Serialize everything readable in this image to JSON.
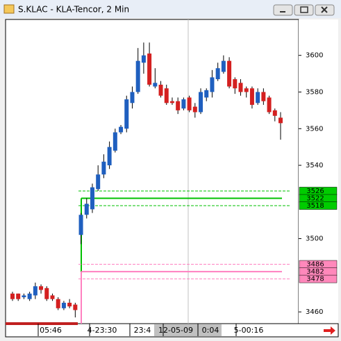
{
  "chart_data": {
    "type": "candlestick",
    "title": "S.KLAC - KLA-Tencor, 2 Min",
    "up_color": "#1f5fbf",
    "down_color": "#d42020",
    "open": [
      3470,
      3470,
      3468,
      3467,
      3469,
      3474,
      3473,
      3469,
      3467,
      3462,
      3465,
      3464,
      3502,
      3513,
      3516,
      3527,
      3535,
      3540,
      3548,
      3558,
      3560,
      3574,
      3580,
      3596,
      3601,
      3583,
      3584,
      3582,
      3575,
      3575,
      3571,
      3577,
      3572,
      3569,
      3577,
      3580,
      3587,
      3591,
      3597,
      3587,
      3585,
      3582,
      3582,
      3574,
      3580,
      3577,
      3570,
      3566
    ],
    "high": [
      3471,
      3470,
      3470,
      3471,
      3476,
      3475,
      3474,
      3470,
      3468,
      3466,
      3467,
      3465,
      3514,
      3522,
      3530,
      3540,
      3546,
      3553,
      3560,
      3562,
      3578,
      3583,
      3604,
      3607,
      3607,
      3593,
      3586,
      3584,
      3577,
      3577,
      3577,
      3578,
      3574,
      3582,
      3582,
      3592,
      3596,
      3600,
      3599,
      3588,
      3587,
      3583,
      3583,
      3582,
      3582,
      3578,
      3571,
      3569
    ],
    "low": [
      3466,
      3466,
      3467,
      3466,
      3467,
      3470,
      3466,
      3466,
      3461,
      3461,
      3462,
      3457,
      3497,
      3511,
      3514,
      3526,
      3533,
      3538,
      3547,
      3557,
      3558,
      3571,
      3579,
      3590,
      3583,
      3582,
      3577,
      3573,
      3573,
      3568,
      3570,
      3569,
      3566,
      3568,
      3575,
      3577,
      3586,
      3590,
      3582,
      3579,
      3578,
      3577,
      3571,
      3573,
      3573,
      3568,
      3564,
      3554
    ],
    "close": [
      3467,
      3467,
      3469,
      3470,
      3474,
      3472,
      3467,
      3467,
      3462,
      3465,
      3463,
      3461,
      3513,
      3519,
      3528,
      3535,
      3542,
      3550,
      3558,
      3561,
      3576,
      3580,
      3597,
      3600,
      3584,
      3585,
      3578,
      3574,
      3574,
      3570,
      3576,
      3570,
      3569,
      3580,
      3581,
      3588,
      3593,
      3597,
      3583,
      3582,
      3580,
      3580,
      3573,
      3580,
      3575,
      3569,
      3567,
      3563
    ],
    "ylim": [
      3453.6,
      3619.6
    ],
    "yticks": [
      3460,
      3500,
      3540,
      3560,
      3580,
      3600
    ],
    "levels": [
      {
        "color": "#00c000",
        "box_color": "#00cc00",
        "values": [
          3526,
          3522,
          3518
        ]
      },
      {
        "color": "#ff80c0",
        "box_color": "#ff88bb",
        "values": [
          3486,
          3482,
          3478
        ]
      }
    ],
    "x_labels": [
      "05:46",
      "4-23:30",
      "23:4",
      "12-05-09",
      "0:04",
      "5-00:16"
    ]
  }
}
